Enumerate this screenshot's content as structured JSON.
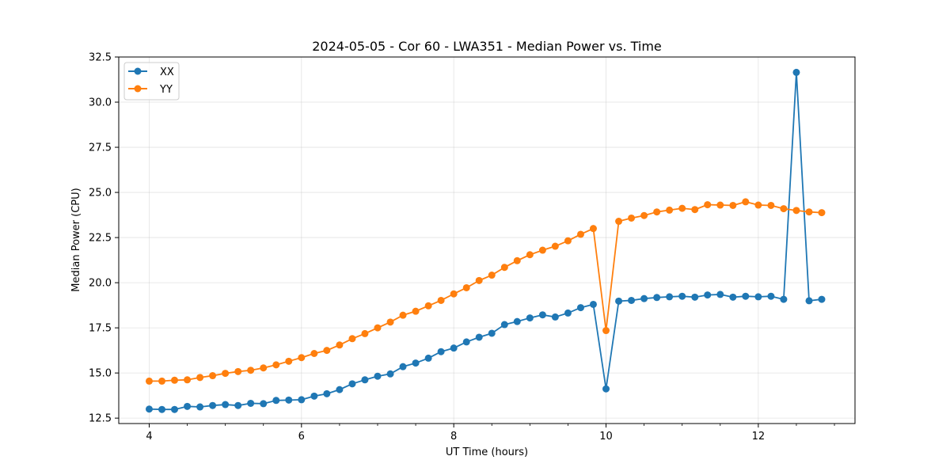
{
  "chart_data": {
    "type": "line",
    "title": "2024-05-05 - Cor 60 - LWA351 - Median Power vs. Time",
    "xlabel": "UT Time (hours)",
    "ylabel": "Median Power (CPU)",
    "xlim": [
      3.6,
      13.27
    ],
    "ylim": [
      12.2,
      32.5
    ],
    "xticks": [
      4,
      6,
      8,
      10,
      12
    ],
    "xtick_labels": [
      "4",
      "6",
      "8",
      "10",
      "12"
    ],
    "yticks": [
      12.5,
      15.0,
      17.5,
      20.0,
      22.5,
      25.0,
      27.5,
      30.0,
      32.5
    ],
    "ytick_labels": [
      "12.5",
      "15.0",
      "17.5",
      "20.0",
      "22.5",
      "25.0",
      "27.5",
      "30.0",
      "32.5"
    ],
    "grid": true,
    "legend_position": "top-left",
    "x": [
      4.0,
      4.167,
      4.333,
      4.5,
      4.667,
      4.833,
      5.0,
      5.167,
      5.333,
      5.5,
      5.667,
      5.833,
      6.0,
      6.167,
      6.333,
      6.5,
      6.667,
      6.833,
      7.0,
      7.167,
      7.333,
      7.5,
      7.667,
      7.833,
      8.0,
      8.167,
      8.333,
      8.5,
      8.667,
      8.833,
      9.0,
      9.167,
      9.333,
      9.5,
      9.667,
      9.833,
      10.0,
      10.167,
      10.333,
      10.5,
      10.667,
      10.833,
      11.0,
      11.167,
      11.333,
      11.5,
      11.667,
      11.833,
      12.0,
      12.167,
      12.333,
      12.5,
      12.667,
      12.833
    ],
    "series": [
      {
        "name": "XX",
        "color": "#1f77b4",
        "values": [
          13.0,
          12.98,
          12.98,
          13.15,
          13.12,
          13.2,
          13.25,
          13.2,
          13.32,
          13.3,
          13.48,
          13.5,
          13.52,
          13.72,
          13.85,
          14.08,
          14.4,
          14.62,
          14.82,
          14.95,
          15.35,
          15.55,
          15.82,
          16.18,
          16.38,
          16.72,
          16.98,
          17.2,
          17.68,
          17.85,
          18.05,
          18.22,
          18.1,
          18.32,
          18.62,
          18.8,
          14.12,
          18.98,
          19.02,
          19.12,
          19.18,
          19.22,
          19.25,
          19.2,
          19.32,
          19.35,
          19.2,
          19.25,
          19.22,
          19.25,
          19.08,
          31.65,
          19.0,
          19.08
        ]
      },
      {
        "name": "YY",
        "color": "#ff7f0e",
        "values": [
          14.55,
          14.55,
          14.6,
          14.62,
          14.75,
          14.85,
          14.98,
          15.08,
          15.15,
          15.28,
          15.45,
          15.65,
          15.85,
          16.08,
          16.25,
          16.55,
          16.9,
          17.18,
          17.5,
          17.82,
          18.2,
          18.42,
          18.72,
          19.02,
          19.38,
          19.72,
          20.12,
          20.42,
          20.85,
          21.22,
          21.55,
          21.8,
          22.02,
          22.32,
          22.68,
          23.0,
          17.35,
          23.4,
          23.58,
          23.72,
          23.92,
          24.02,
          24.12,
          24.05,
          24.32,
          24.3,
          24.28,
          24.48,
          24.3,
          24.28,
          24.1,
          24.0,
          23.92,
          23.88
        ]
      }
    ]
  }
}
